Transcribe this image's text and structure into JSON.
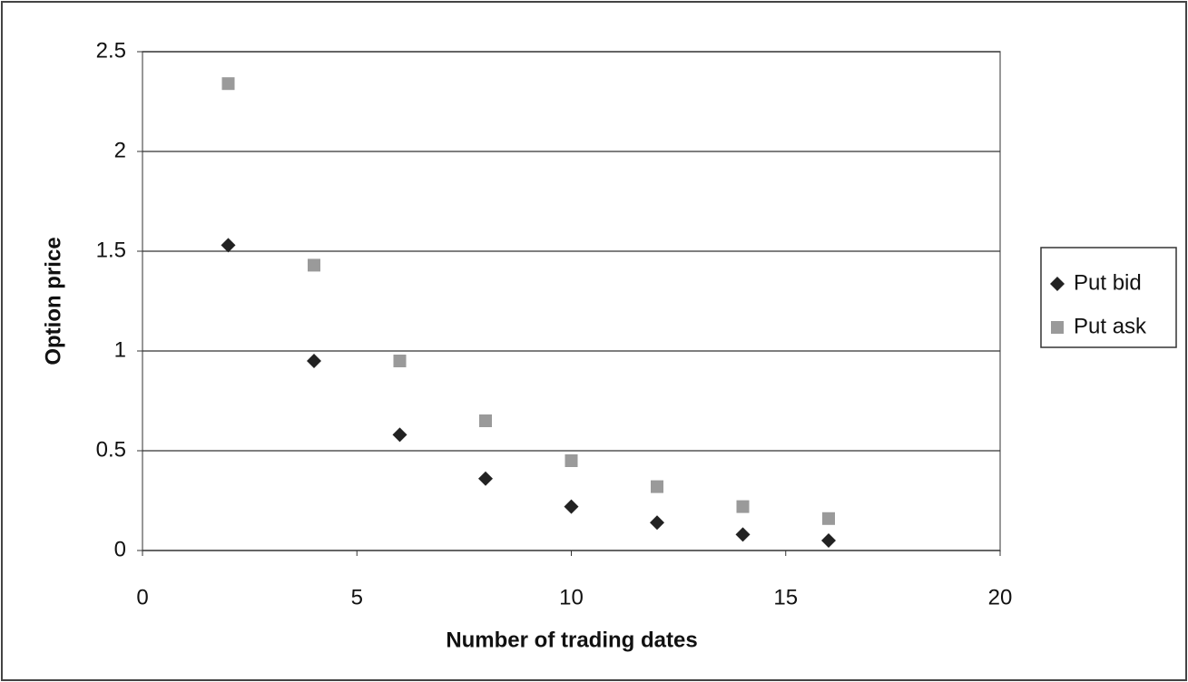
{
  "chart_data": {
    "type": "scatter",
    "x_label": "Number of trading dates",
    "y_label": "Option price",
    "x": [
      2,
      4,
      6,
      8,
      10,
      12,
      14,
      16
    ],
    "series": [
      {
        "name": "Put bid",
        "color": "#222222",
        "marker": "diamond",
        "values": [
          1.53,
          0.95,
          0.58,
          0.36,
          0.22,
          0.14,
          0.08,
          0.05
        ]
      },
      {
        "name": "Put ask",
        "color": "#9a9a9a",
        "marker": "square",
        "values": [
          2.34,
          1.43,
          0.95,
          0.65,
          0.45,
          0.32,
          0.22,
          0.16
        ]
      }
    ],
    "xlim": [
      0,
      20
    ],
    "xticks": [
      0,
      5,
      10,
      15,
      20
    ],
    "ylim": [
      0,
      2.5
    ],
    "yticks": [
      0,
      0.5,
      1,
      1.5,
      2,
      2.5
    ],
    "grid": true,
    "legend": "right"
  }
}
